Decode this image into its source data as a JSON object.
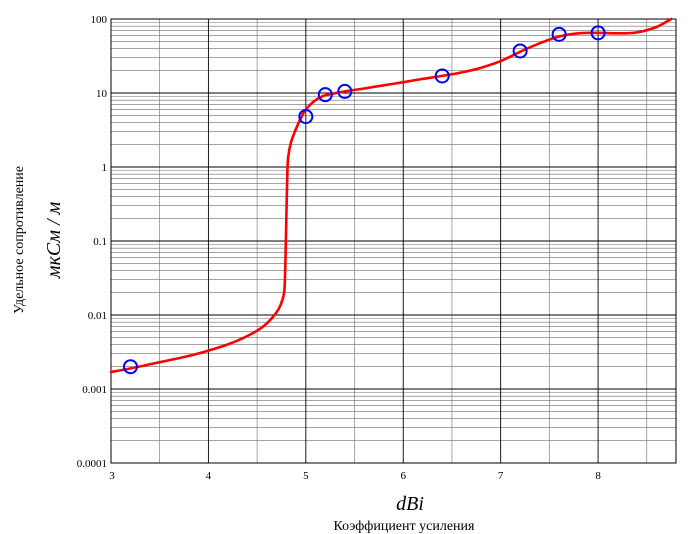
{
  "chart_data": {
    "type": "line",
    "x_scale": "linear",
    "y_scale": "log",
    "xlim": [
      3,
      8.8
    ],
    "ylim": [
      0.0001,
      100
    ],
    "x_ticks": [
      3,
      4,
      5,
      6,
      7,
      8
    ],
    "x_tick_labels": [
      "3",
      "4",
      "5",
      "6",
      "7",
      "8"
    ],
    "y_ticks": [
      0.0001,
      0.001,
      0.01,
      0.1,
      1,
      10,
      100
    ],
    "y_tick_labels": [
      "0.0001",
      "0.001",
      "0.01",
      "0.1",
      "1",
      "10",
      "100"
    ],
    "xlabel_unit": "dBi",
    "xlabel": "Коэффициент усиления",
    "ylabel_unit": "мкСм / м",
    "ylabel": "Удельное сопротивление",
    "grid": true,
    "series": [
      {
        "kind": "curve",
        "color": "#ff0000",
        "x": [
          3.0,
          3.2,
          3.5,
          3.8,
          4.0,
          4.2,
          4.4,
          4.55,
          4.65,
          4.72,
          4.76,
          4.78,
          4.79,
          4.8,
          4.81,
          4.82,
          4.85,
          4.9,
          4.95,
          5.0,
          5.1,
          5.2,
          5.4,
          5.6,
          5.8,
          6.0,
          6.2,
          6.4,
          6.6,
          6.8,
          7.0,
          7.2,
          7.4,
          7.6,
          7.8,
          8.0,
          8.2,
          8.4,
          8.6,
          8.75
        ],
        "y": [
          0.0017,
          0.0019,
          0.0023,
          0.0028,
          0.0033,
          0.004,
          0.0052,
          0.0068,
          0.009,
          0.012,
          0.016,
          0.022,
          0.05,
          0.2,
          0.8,
          1.4,
          2.2,
          3.3,
          4.6,
          6.0,
          8.0,
          9.3,
          10.5,
          11.5,
          12.7,
          14.0,
          15.5,
          17.0,
          19.0,
          22.0,
          27.0,
          36.0,
          47.0,
          58.0,
          64.0,
          65.0,
          64.0,
          66.0,
          78.0,
          100.0
        ]
      },
      {
        "kind": "points",
        "color": "#0000ff",
        "x": [
          3.2,
          5.0,
          5.2,
          5.4,
          6.4,
          7.2,
          7.6,
          8.0
        ],
        "y": [
          0.002,
          4.8,
          9.5,
          10.5,
          17.0,
          37.0,
          62.0,
          65.0
        ]
      }
    ]
  }
}
